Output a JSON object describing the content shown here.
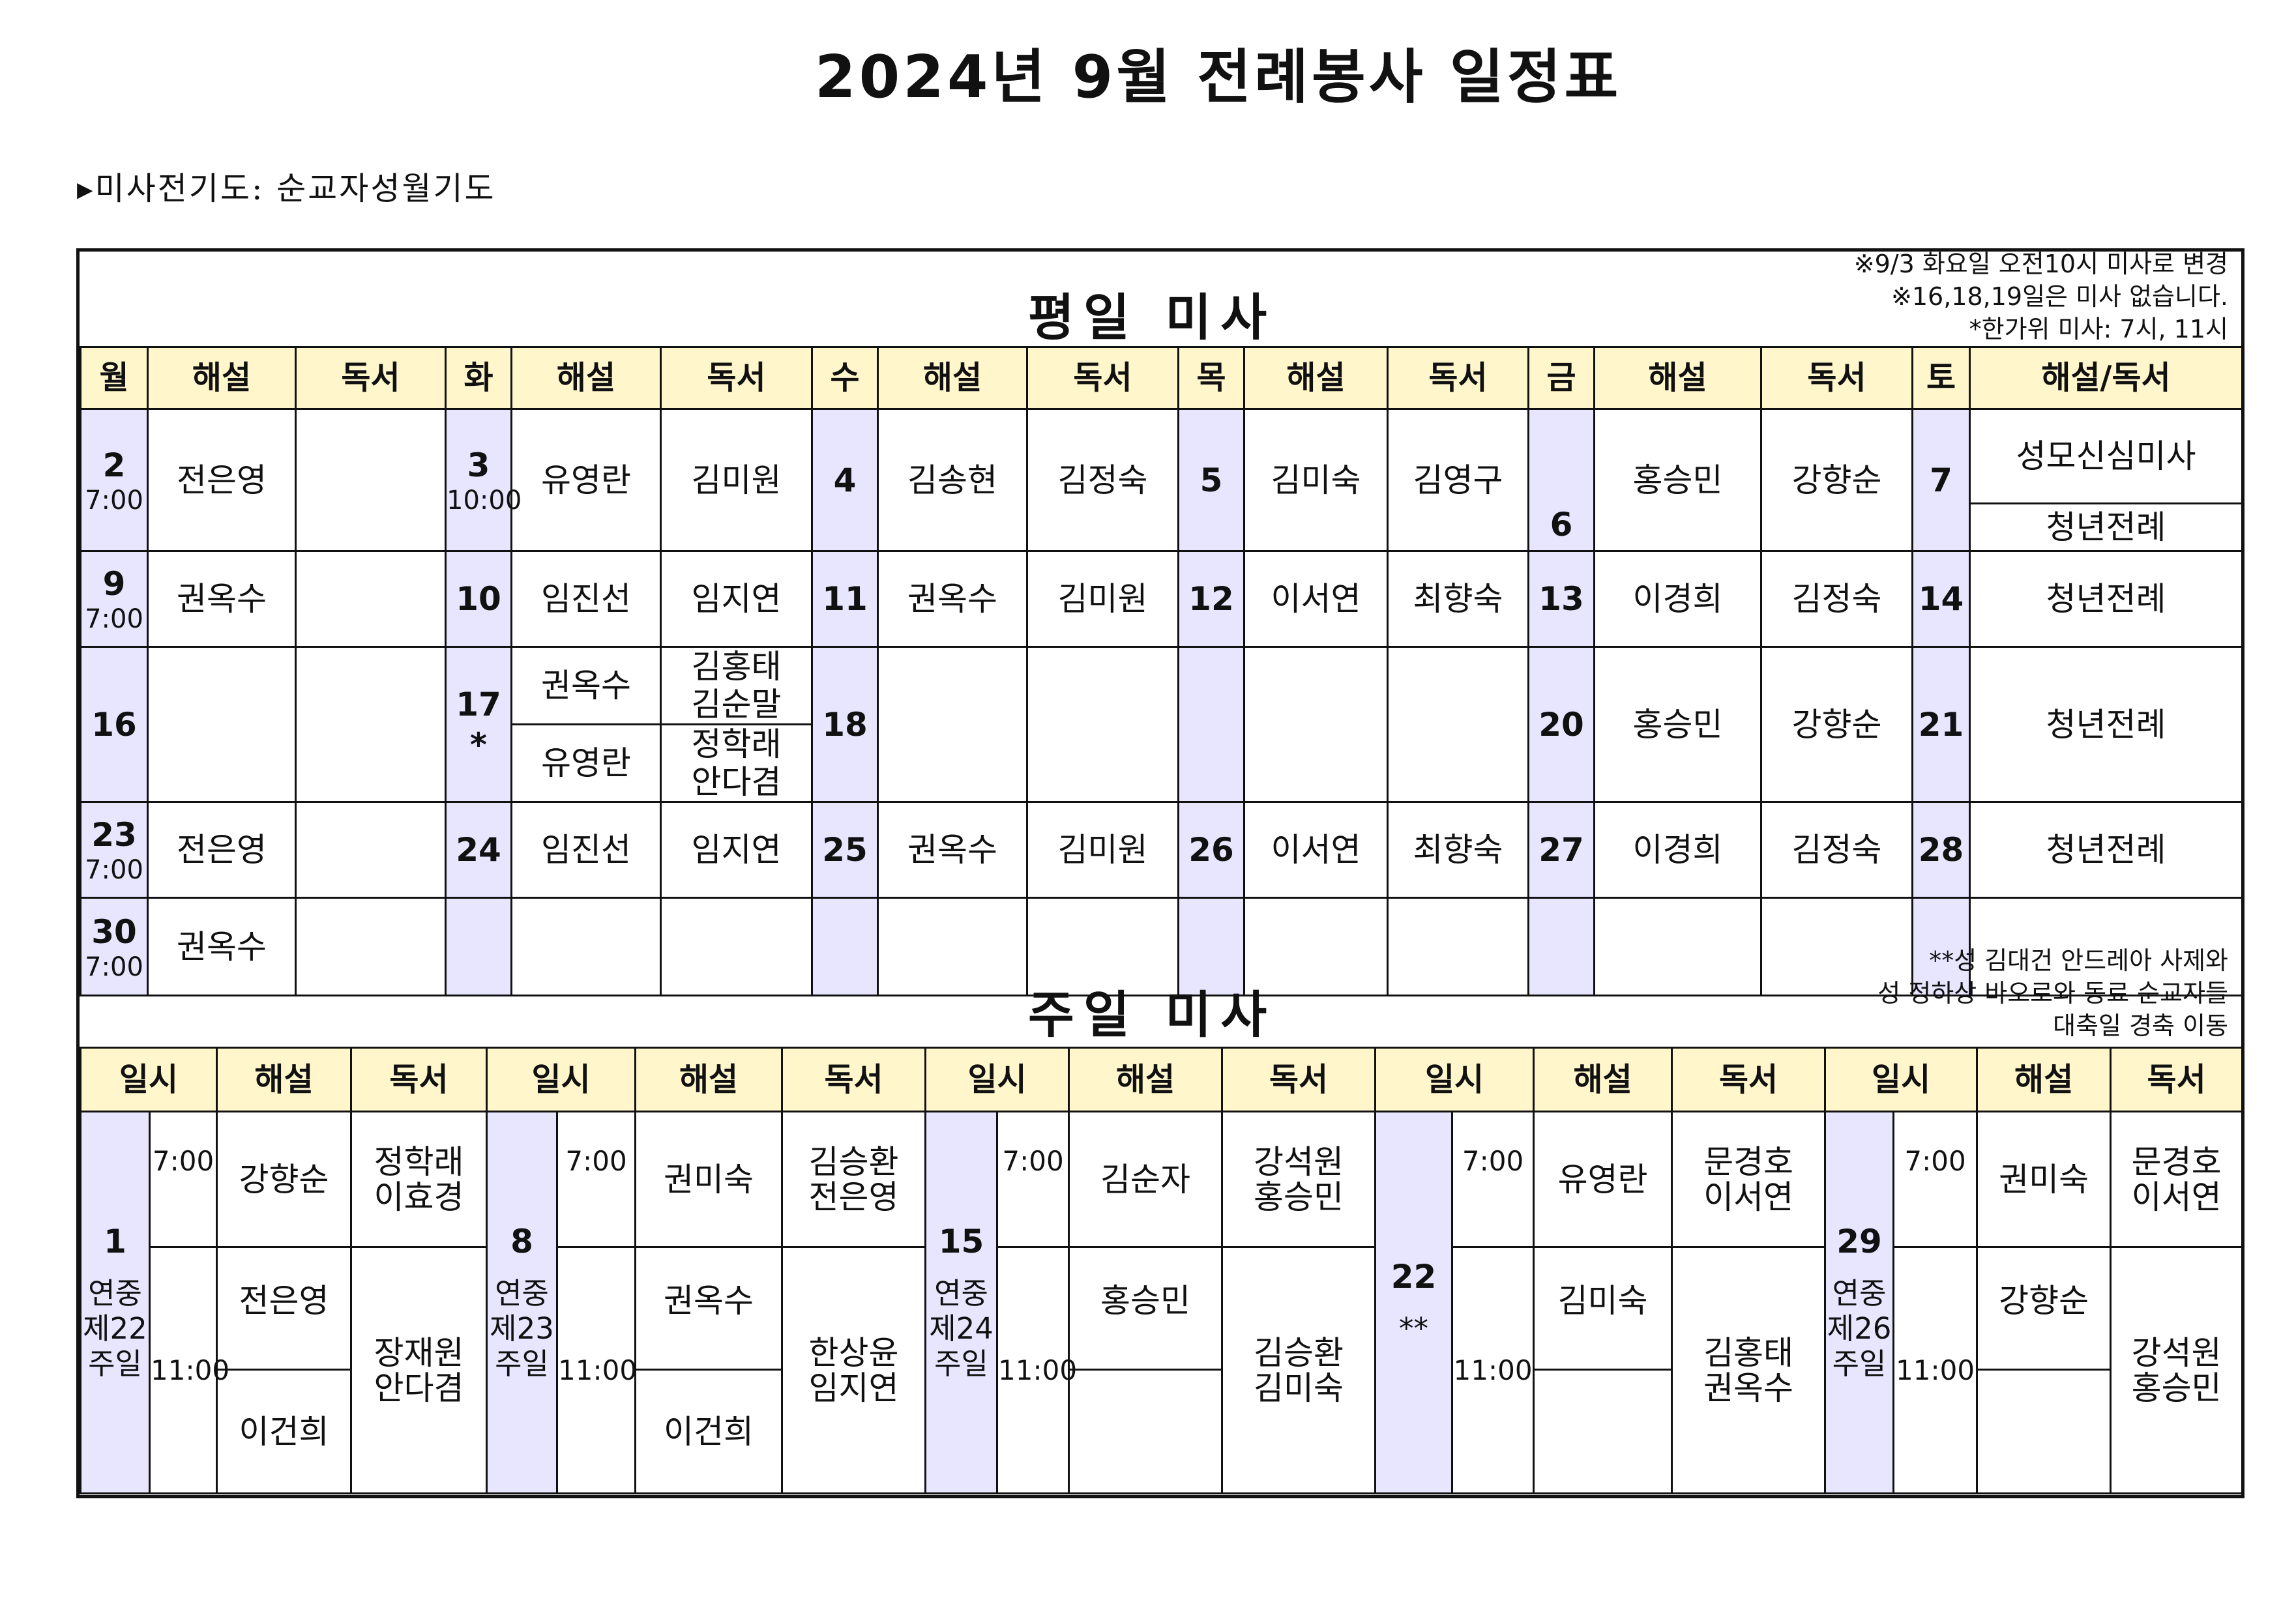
{
  "title": "2024년 9월 전례봉사 일정표",
  "prayer_note": "▸미사전기도: 순교자성월기도",
  "weekday": {
    "section_title": "평일 미사",
    "notes": [
      "※9/3 화요일 오전10시 미사로 변경",
      "※16,18,19일은 미사 없습니다.",
      "*한가위 미사: 7시, 11시"
    ],
    "headers": [
      "월",
      "해설",
      "독서",
      "화",
      "해설",
      "독서",
      "수",
      "해설",
      "독서",
      "목",
      "해설",
      "독서",
      "금",
      "해설",
      "독서",
      "토",
      "해설/독서"
    ],
    "rows": [
      {
        "mon": "2",
        "mon_time": "7:00",
        "mon_c": "전은영",
        "mon_r": "",
        "tue": "3",
        "tue_time": "10:00",
        "tue_c": "유영란",
        "tue_r": "김미원",
        "wed": "4",
        "wed_c": "김송현",
        "wed_r": "김정숙",
        "thu": "5",
        "thu_c": "김미숙",
        "thu_r": "김영구",
        "fri": "6",
        "fri_c": "홍승민",
        "fri_r": "강향순",
        "sat": "7",
        "sat_a": "성모신심미사",
        "sat_b": "청년전례"
      },
      {
        "mon": "9",
        "mon_time": "7:00",
        "mon_c": "권옥수",
        "mon_r": "",
        "tue": "10",
        "tue_c": "임진선",
        "tue_r": "임지연",
        "wed": "11",
        "wed_c": "권옥수",
        "wed_r": "김미원",
        "thu": "12",
        "thu_c": "이서연",
        "thu_r": "최향숙",
        "fri": "13",
        "fri_c": "이경희",
        "fri_r": "김정숙",
        "sat": "14",
        "sat_a": "청년전례"
      },
      {
        "mon": "16",
        "mon_c": "",
        "mon_r": "",
        "tue": "17",
        "tue_mark": "*",
        "tue_c1": "권옥수",
        "tue_r1a": "김홍태",
        "tue_r1b": "김순말",
        "tue_c2": "유영란",
        "tue_r2a": "정학래",
        "tue_r2b": "안다겸",
        "wed": "18",
        "wed_c": "",
        "wed_r": "",
        "thu": "",
        "thu_c": "",
        "thu_r": "",
        "fri": "20",
        "fri_c": "홍승민",
        "fri_r": "강향순",
        "sat": "21",
        "sat_a": "청년전례"
      },
      {
        "mon": "23",
        "mon_time": "7:00",
        "mon_c": "전은영",
        "mon_r": "",
        "tue": "24",
        "tue_c": "임진선",
        "tue_r": "임지연",
        "wed": "25",
        "wed_c": "권옥수",
        "wed_r": "김미원",
        "thu": "26",
        "thu_c": "이서연",
        "thu_r": "최향숙",
        "fri": "27",
        "fri_c": "이경희",
        "fri_r": "김정숙",
        "sat": "28",
        "sat_a": "청년전례"
      },
      {
        "mon": "30",
        "mon_time": "7:00",
        "mon_c": "권옥수",
        "mon_r": ""
      }
    ]
  },
  "sunday": {
    "section_title": "주일 미사",
    "notes": [
      "**성 김대건 안드레아 사제와",
      "성 정하상 바오로와 동료 순교자들",
      "대축일 경축 이동"
    ],
    "headers": [
      "일시",
      "해설",
      "독서",
      "일시",
      "해설",
      "독서",
      "일시",
      "해설",
      "독서",
      "일시",
      "해설",
      "독서",
      "일시",
      "해설",
      "독서"
    ],
    "groups": [
      {
        "day": "1",
        "label": [
          "연중",
          "제22",
          "주일"
        ],
        "t1": "7:00",
        "c1": "강향순",
        "r1": [
          "정학래",
          "이효경"
        ],
        "t2": "11:00",
        "c2a": "전은영",
        "c2b": "이건희",
        "r2": [
          "장재원",
          "안다겸"
        ]
      },
      {
        "day": "8",
        "label": [
          "연중",
          "제23",
          "주일"
        ],
        "t1": "7:00",
        "c1": "권미숙",
        "r1": [
          "김승환",
          "전은영"
        ],
        "t2": "11:00",
        "c2a": "권옥수",
        "c2b": "이건희",
        "r2": [
          "한상윤",
          "임지연"
        ]
      },
      {
        "day": "15",
        "label": [
          "연중",
          "제24",
          "주일"
        ],
        "t1": "7:00",
        "c1": "김순자",
        "r1": [
          "강석원",
          "홍승민"
        ],
        "t2": "11:00",
        "c2a": "홍승민",
        "c2b": "",
        "r2": [
          "김승환",
          "김미숙"
        ]
      },
      {
        "day": "22",
        "label": [
          "**"
        ],
        "t1": "7:00",
        "c1": "유영란",
        "r1": [
          "문경호",
          "이서연"
        ],
        "t2": "11:00",
        "c2a": "김미숙",
        "c2b": "",
        "r2": [
          "김홍태",
          "권옥수"
        ]
      },
      {
        "day": "29",
        "label": [
          "연중",
          "제26",
          "주일"
        ],
        "t1": "7:00",
        "c1": "권미숙",
        "r1": [
          "문경호",
          "이서연"
        ],
        "t2": "11:00",
        "c2a": "강향순",
        "c2b": "",
        "r2": [
          "강석원",
          "홍승민"
        ]
      }
    ]
  }
}
